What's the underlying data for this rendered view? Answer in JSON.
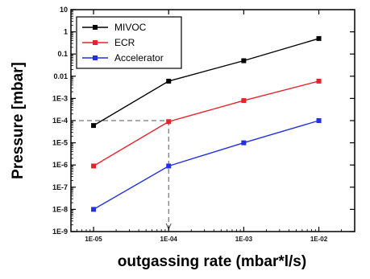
{
  "chart_data": {
    "type": "line",
    "xlabel": "outgassing rate (mbar*l/s)",
    "ylabel": "Pressure [mbar]",
    "x_scale": "log",
    "y_scale": "log",
    "xlim": [
      5e-06,
      0.03
    ],
    "ylim": [
      1e-09,
      10
    ],
    "x_ticks": [
      {
        "value": 1e-05,
        "label": "1E-05"
      },
      {
        "value": 0.0001,
        "label": "1E-04"
      },
      {
        "value": 0.001,
        "label": "1E-03"
      },
      {
        "value": 0.01,
        "label": "1E-02"
      }
    ],
    "y_ticks": [
      {
        "value": 10,
        "label": "10"
      },
      {
        "value": 1,
        "label": "1"
      },
      {
        "value": 0.1,
        "label": "0.1"
      },
      {
        "value": 0.01,
        "label": "0.01"
      },
      {
        "value": 0.001,
        "label": "1E-3"
      },
      {
        "value": 0.0001,
        "label": "1E-4"
      },
      {
        "value": 1e-05,
        "label": "1E-5"
      },
      {
        "value": 1e-06,
        "label": "1E-6"
      },
      {
        "value": 1e-07,
        "label": "1E-7"
      },
      {
        "value": 1e-08,
        "label": "1E-8"
      },
      {
        "value": 1e-09,
        "label": "1E-9"
      }
    ],
    "x": [
      1e-05,
      0.0001,
      0.001,
      0.01
    ],
    "series": [
      {
        "name": "MIVOC",
        "color": "#000000",
        "values": [
          6e-05,
          0.006,
          0.05,
          0.5
        ]
      },
      {
        "name": "ECR",
        "color": "#e8222a",
        "values": [
          9e-07,
          9e-05,
          0.0008,
          0.006
        ]
      },
      {
        "name": "Accelerator",
        "color": "#2431e0",
        "values": [
          1e-08,
          9e-07,
          1e-05,
          0.0001
        ]
      }
    ],
    "reference_lines": {
      "x": 0.0001,
      "y": 0.0001
    },
    "legend_position": "top-left",
    "grid": false
  }
}
